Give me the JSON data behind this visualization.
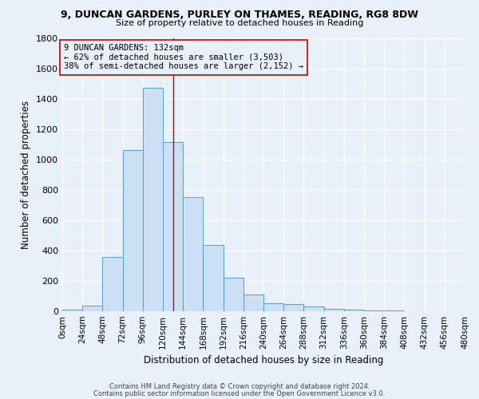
{
  "title1": "9, DUNCAN GARDENS, PURLEY ON THAMES, READING, RG8 8DW",
  "title2": "Size of property relative to detached houses in Reading",
  "xlabel": "Distribution of detached houses by size in Reading",
  "ylabel": "Number of detached properties",
  "footer1": "Contains HM Land Registry data © Crown copyright and database right 2024.",
  "footer2": "Contains public sector information licensed under the Open Government Licence v3.0.",
  "bin_edges": [
    0,
    24,
    48,
    72,
    96,
    120,
    144,
    168,
    192,
    216,
    240,
    264,
    288,
    312,
    336,
    360,
    384,
    408,
    432,
    456,
    480
  ],
  "counts": [
    10,
    35,
    355,
    1060,
    1470,
    1115,
    750,
    435,
    220,
    110,
    55,
    45,
    30,
    15,
    10,
    5,
    3,
    2,
    1,
    1
  ],
  "property_sqm": 132,
  "annotation_line1": "9 DUNCAN GARDENS: 132sqm",
  "annotation_line2": "← 62% of detached houses are smaller (3,503)",
  "annotation_line3": "38% of semi-detached houses are larger (2,152) →",
  "bar_face_color": "#cce0f5",
  "bar_edge_color": "#5b9bd5",
  "vline_color": "#cc0000",
  "annotation_box_edge": "#cc0000",
  "background_color": "#e8f0fa",
  "grid_color": "#ffffff",
  "annotation_fontsize": 7.5,
  "title1_fontsize": 9.0,
  "title2_fontsize": 8.0,
  "ylabel_fontsize": 8.5,
  "xlabel_fontsize": 8.5,
  "tick_fontsize": 7.5,
  "ytick_fontsize": 8.0,
  "footer_fontsize": 6.0,
  "ylim": [
    0,
    1800
  ],
  "xlim_left": 0,
  "xlim_right": 480
}
